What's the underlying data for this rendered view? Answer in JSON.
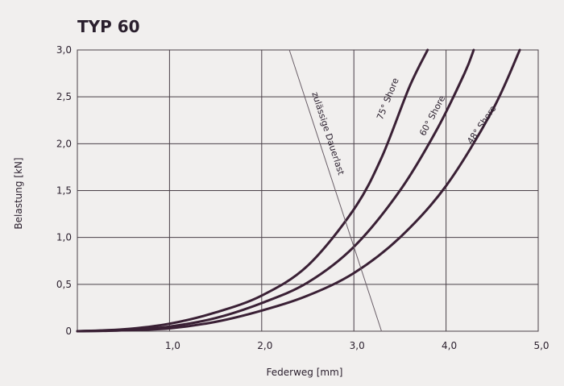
{
  "chart_data": {
    "type": "line",
    "title": "TYP 60",
    "xlabel": "Federweg [mm]",
    "ylabel": "Belastung [kN]",
    "xlim": [
      0,
      5.0
    ],
    "ylim": [
      0,
      3.0
    ],
    "grid": true,
    "x_ticks": [
      {
        "value": 1.0,
        "label": "1,0"
      },
      {
        "value": 2.0,
        "label": "2,0"
      },
      {
        "value": 3.0,
        "label": "3,0"
      },
      {
        "value": 4.0,
        "label": "4,0"
      },
      {
        "value": 5.0,
        "label": "5,0"
      }
    ],
    "y_ticks": [
      {
        "value": 0,
        "label": "0"
      },
      {
        "value": 0.5,
        "label": "0,5"
      },
      {
        "value": 1.0,
        "label": "1,0"
      },
      {
        "value": 1.5,
        "label": "1,5"
      },
      {
        "value": 2.0,
        "label": "2,0"
      },
      {
        "value": 2.5,
        "label": "2,5"
      },
      {
        "value": 3.0,
        "label": "3,0"
      }
    ],
    "series": [
      {
        "name": "75° Shore",
        "color": "#3a2035",
        "x": [
          0,
          0.5,
          1.0,
          1.5,
          2.0,
          2.5,
          3.0,
          3.3,
          3.6,
          3.8
        ],
        "y": [
          0,
          0.02,
          0.08,
          0.2,
          0.38,
          0.7,
          1.3,
          1.85,
          2.6,
          3.0
        ]
      },
      {
        "name": "60° Shore",
        "color": "#3a2035",
        "x": [
          0,
          0.5,
          1.0,
          1.5,
          2.0,
          2.5,
          3.0,
          3.5,
          3.9,
          4.2,
          4.3
        ],
        "y": [
          0,
          0.01,
          0.05,
          0.14,
          0.3,
          0.52,
          0.9,
          1.5,
          2.15,
          2.75,
          3.0
        ]
      },
      {
        "name": "48° Shore",
        "color": "#3a2035",
        "x": [
          0,
          0.5,
          1.0,
          1.5,
          2.0,
          2.5,
          3.0,
          3.5,
          4.0,
          4.5,
          4.8
        ],
        "y": [
          0,
          0.01,
          0.03,
          0.1,
          0.22,
          0.38,
          0.62,
          1.0,
          1.55,
          2.35,
          3.0
        ]
      },
      {
        "name": "zulässige Dauerlast",
        "color": "#6a5f68",
        "x": [
          2.3,
          3.3
        ],
        "y": [
          3.0,
          0
        ]
      }
    ]
  }
}
